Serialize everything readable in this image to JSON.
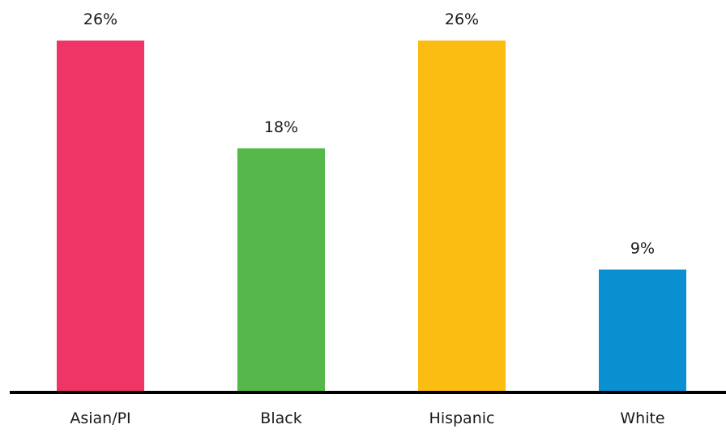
{
  "chart_data": {
    "type": "bar",
    "title": "",
    "xlabel": "",
    "ylabel": "",
    "categories": [
      "Asian/PI",
      "Black",
      "Hispanic",
      "White"
    ],
    "values": [
      26,
      18,
      26,
      9
    ],
    "data_labels": [
      "26%",
      "18%",
      "26%",
      "9%"
    ],
    "colors": [
      "#ee3566",
      "#56b84a",
      "#fbbd12",
      "#0a90d0"
    ],
    "ylim": [
      0,
      28
    ],
    "grid": false,
    "legend": "none",
    "axis_color": "#000000"
  }
}
